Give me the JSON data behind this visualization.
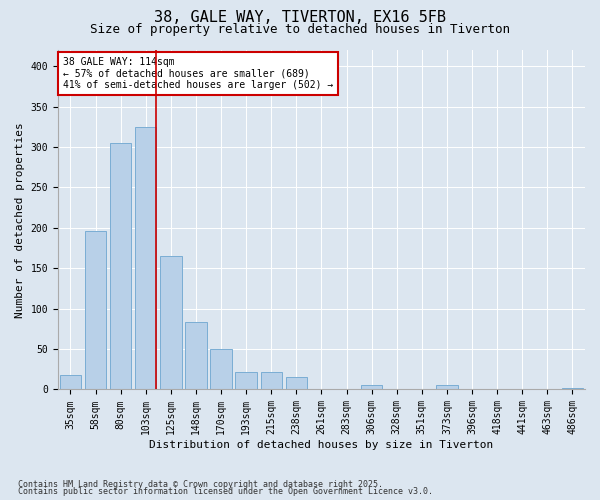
{
  "title_line1": "38, GALE WAY, TIVERTON, EX16 5FB",
  "title_line2": "Size of property relative to detached houses in Tiverton",
  "xlabel": "Distribution of detached houses by size in Tiverton",
  "ylabel": "Number of detached properties",
  "categories": [
    "35sqm",
    "58sqm",
    "80sqm",
    "103sqm",
    "125sqm",
    "148sqm",
    "170sqm",
    "193sqm",
    "215sqm",
    "238sqm",
    "261sqm",
    "283sqm",
    "306sqm",
    "328sqm",
    "351sqm",
    "373sqm",
    "396sqm",
    "418sqm",
    "441sqm",
    "463sqm",
    "486sqm"
  ],
  "values": [
    18,
    196,
    305,
    325,
    165,
    83,
    50,
    22,
    22,
    15,
    0,
    0,
    5,
    0,
    0,
    5,
    0,
    0,
    0,
    0,
    2
  ],
  "bar_color": "#b8d0e8",
  "bar_edge_color": "#7aadd4",
  "vline_color": "#cc0000",
  "annotation_box_color": "#ffffff",
  "annotation_box_edge_color": "#cc0000",
  "bg_color": "#dce6f0",
  "plot_bg_color": "#dce6f0",
  "ylim": [
    0,
    420
  ],
  "yticks": [
    0,
    50,
    100,
    150,
    200,
    250,
    300,
    350,
    400
  ],
  "footer_line1": "Contains HM Land Registry data © Crown copyright and database right 2025.",
  "footer_line2": "Contains public sector information licensed under the Open Government Licence v3.0.",
  "title_fontsize": 11,
  "subtitle_fontsize": 9,
  "axis_label_fontsize": 8,
  "tick_fontsize": 7,
  "annotation_fontsize": 7,
  "footer_fontsize": 6,
  "marker_bin_index": 3,
  "annotation_text_line1": "38 GALE WAY: 114sqm",
  "annotation_text_line2": "← 57% of detached houses are smaller (689)",
  "annotation_text_line3": "41% of semi-detached houses are larger (502) →"
}
